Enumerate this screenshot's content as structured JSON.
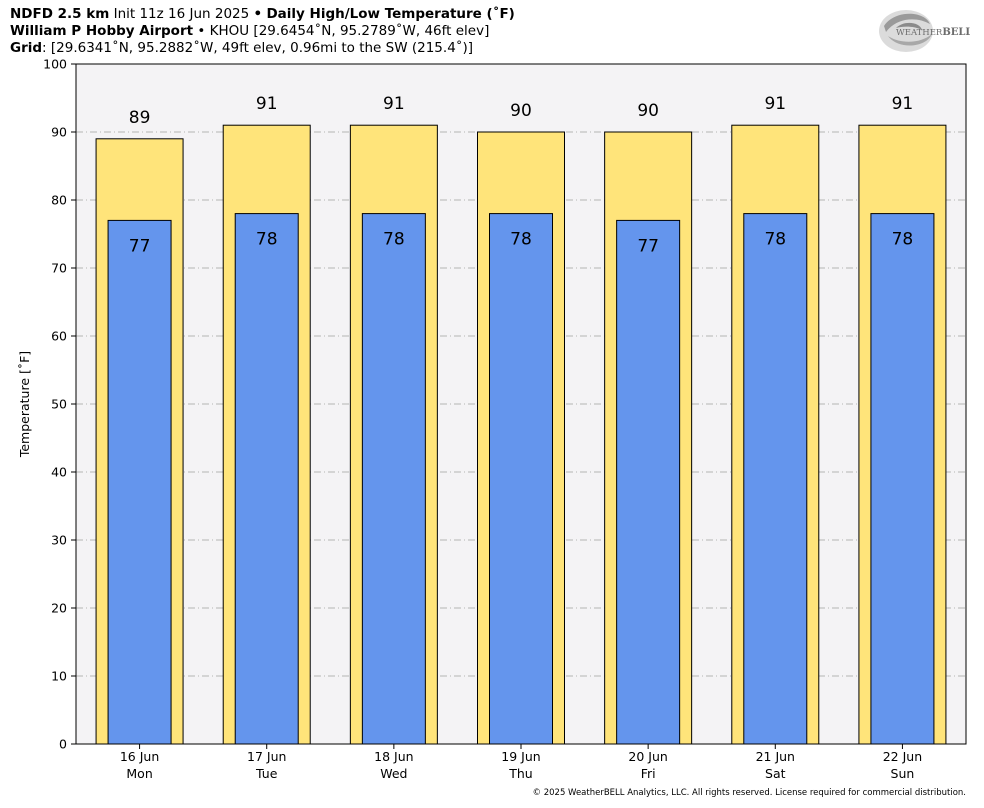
{
  "header": {
    "line1_model": "NDFD 2.5 km",
    "line1_init": "Init 11z 16 Jun 2025",
    "line1_sep": "•",
    "line1_title": "Daily High/Low Temperature (˚F)",
    "line2_station": "William P Hobby Airport",
    "line2_sep": "•",
    "line2_info": "KHOU [29.6454˚N, 95.2789˚W, 46ft elev]",
    "line3_label": "Grid",
    "line3_info": ": [29.6341˚N, 95.2882˚W, 49ft elev, 0.96mi to the SW (215.4˚)]"
  },
  "logo": {
    "text_a": "WEATHER",
    "text_b": "BELL",
    "icon": "weatherbell-swirl-logo"
  },
  "copyright": "© 2025 WeatherBELL Analytics, LLC. All rights reserved. License required for commercial distribution.",
  "chart_data": {
    "type": "bar",
    "categories": [
      {
        "date": "16 Jun",
        "day": "Mon"
      },
      {
        "date": "17 Jun",
        "day": "Tue"
      },
      {
        "date": "18 Jun",
        "day": "Wed"
      },
      {
        "date": "19 Jun",
        "day": "Thu"
      },
      {
        "date": "20 Jun",
        "day": "Fri"
      },
      {
        "date": "21 Jun",
        "day": "Sat"
      },
      {
        "date": "22 Jun",
        "day": "Sun"
      }
    ],
    "series": [
      {
        "values": [
          89,
          91,
          91,
          90,
          90,
          91,
          91
        ],
        "color": "#FFE47A"
      },
      {
        "values": [
          77,
          78,
          78,
          78,
          77,
          78,
          78
        ],
        "color": "#6495ED"
      }
    ],
    "ylabel": "Temperature [˚F]",
    "ylim": [
      0,
      100
    ],
    "yticks": [
      0,
      10,
      20,
      30,
      40,
      50,
      60,
      70,
      80,
      90,
      100
    ],
    "grid": true,
    "plot_background": "#F4F3F5"
  }
}
